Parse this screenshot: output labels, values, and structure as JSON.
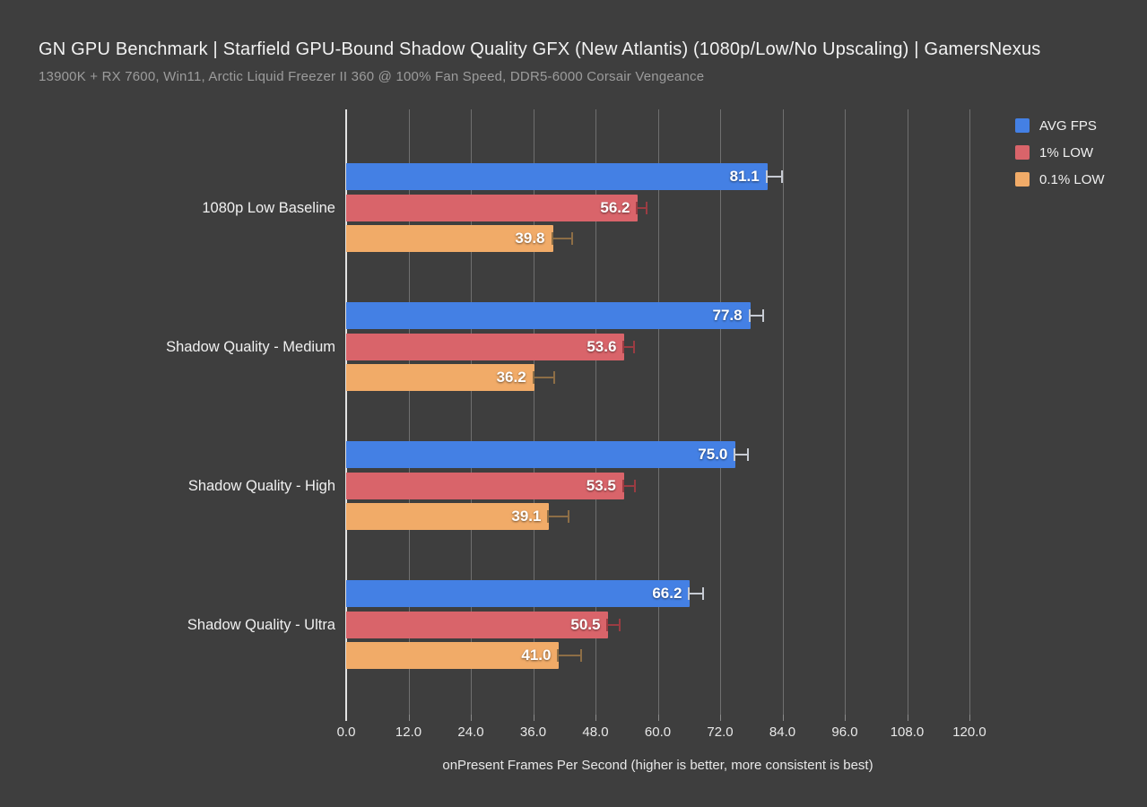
{
  "header": {
    "title": "GN GPU Benchmark | Starfield GPU-Bound Shadow Quality GFX (New Atlantis) (1080p/Low/No Upscaling) | GamersNexus",
    "subtitle": "13900K + RX 7600, Win11, Arctic Liquid Freezer II 360 @ 100% Fan Speed, DDR5-6000 Corsair Vengeance"
  },
  "chart_data": {
    "type": "bar",
    "orientation": "horizontal",
    "title": "GN GPU Benchmark | Starfield GPU-Bound Shadow Quality GFX (New Atlantis) (1080p/Low/No Upscaling) | GamersNexus",
    "subtitle": "13900K + RX 7600, Win11, Arctic Liquid Freezer II 360 @ 100% Fan Speed, DDR5-6000 Corsair Vengeance",
    "categories": [
      "1080p Low Baseline",
      "Shadow Quality - Medium",
      "Shadow Quality - High",
      "Shadow Quality - Ultra"
    ],
    "series": [
      {
        "name": "AVG FPS",
        "color": "#4480e4",
        "error_color": "#c7cbd3",
        "values": [
          81.1,
          77.8,
          75.0,
          66.2
        ],
        "errors": [
          2.6,
          2.4,
          2.2,
          2.4
        ]
      },
      {
        "name": "1% LOW",
        "color": "#d9646a",
        "error_color": "#9a3c42",
        "values": [
          56.2,
          53.6,
          53.5,
          50.5
        ],
        "errors": [
          1.4,
          1.7,
          1.9,
          2.0
        ]
      },
      {
        "name": "0.1% LOW",
        "color": "#f1ab68",
        "error_color": "#8d6e46",
        "values": [
          39.8,
          36.2,
          39.1,
          41.0
        ],
        "errors": [
          3.6,
          3.6,
          3.6,
          4.0
        ]
      }
    ],
    "xlabel": "onPresent Frames Per Second (higher is better, more consistent is best)",
    "xlim": [
      0,
      120
    ],
    "xtick_step": 12,
    "xtick_labels": [
      "0.0",
      "12.0",
      "24.0",
      "36.0",
      "48.0",
      "60.0",
      "72.0",
      "84.0",
      "96.0",
      "108.0",
      "120.0"
    ],
    "grid": true,
    "legend_position": "top-right",
    "value_labels": "inside-end, one decimal"
  },
  "colors": {
    "background": "#3e3e3e",
    "grid": "#6f6f6f",
    "axis": "#e3e3e3",
    "title": "#f2f2f2",
    "subtitle": "#9c9c9c",
    "tick_label": "#e8e8e8",
    "category_label": "#f0f0f0",
    "value_label": "#ffffff"
  }
}
